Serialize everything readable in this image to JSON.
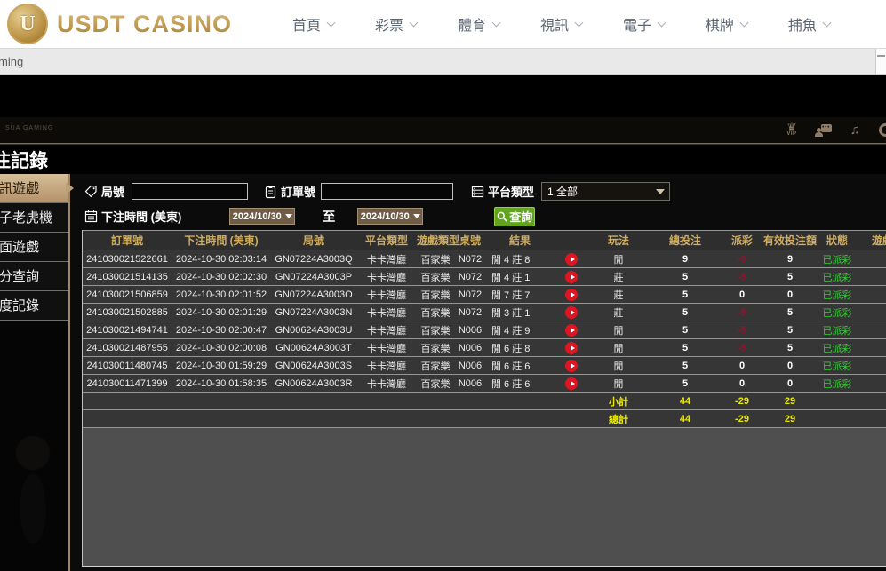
{
  "brand": {
    "name": "USDT CASINO",
    "logo_letter": "U"
  },
  "nav": {
    "items": [
      {
        "id": "home",
        "label": "首頁"
      },
      {
        "id": "lottery",
        "label": "彩票"
      },
      {
        "id": "sports",
        "label": "體育"
      },
      {
        "id": "live",
        "label": "視訊"
      },
      {
        "id": "slots",
        "label": "電子"
      },
      {
        "id": "cards",
        "label": "棋牌"
      },
      {
        "id": "fishing",
        "label": "捕魚"
      }
    ]
  },
  "breadcrumb_bar": {
    "text": "ming"
  },
  "toolbar": {
    "watermark": "SUA GAMING",
    "vip_label": "VIP"
  },
  "page": {
    "title": "注記錄"
  },
  "sidebar": {
    "items": [
      {
        "id": "live-games",
        "label": "訊遊戲",
        "active": true
      },
      {
        "id": "slot-machine",
        "label": "子老虎機",
        "active": false
      },
      {
        "id": "table-games",
        "label": "面遊戲",
        "active": false
      },
      {
        "id": "points-query",
        "label": "分查詢",
        "active": false
      },
      {
        "id": "quota-record",
        "label": "度記錄",
        "active": false
      }
    ]
  },
  "filters": {
    "round_label": "局號",
    "order_label": "訂單號",
    "platform_label": "平台類型",
    "platform_value": "1.全部",
    "time_label": "下注時間 (美東)",
    "date_from": "2024/10/30",
    "to_label": "至",
    "date_to": "2024/10/30",
    "search_label": "查詢"
  },
  "table": {
    "headers": [
      {
        "id": "order",
        "label": "訂單號"
      },
      {
        "id": "time",
        "label": "下注時間 (美東)"
      },
      {
        "id": "round",
        "label": "局號"
      },
      {
        "id": "platform",
        "label": "平台類型"
      },
      {
        "id": "game-type",
        "label": "遊戲類型"
      },
      {
        "id": "table-no",
        "label": "桌號"
      },
      {
        "id": "result",
        "label": "結果"
      },
      {
        "id": "video",
        "label": ""
      },
      {
        "id": "play",
        "label": "玩法"
      },
      {
        "id": "total-bet",
        "label": "總投注"
      },
      {
        "id": "payout",
        "label": "派彩"
      },
      {
        "id": "valid-bet",
        "label": "有效投注額"
      },
      {
        "id": "status",
        "label": "狀態"
      },
      {
        "id": "game",
        "label": "遊戲"
      }
    ],
    "rows": [
      {
        "order": "241030021522661",
        "time": "2024-10-30 02:03:14",
        "round": "GN07224A3003Q",
        "platform": "卡卡灣廳",
        "game": "百家樂",
        "table_no": "N072",
        "result": "閒 4 莊 8",
        "play": "閒",
        "total_bet": "9",
        "payout": "-9",
        "valid_bet": "9",
        "status": "已派彩"
      },
      {
        "order": "241030021514135",
        "time": "2024-10-30 02:02:30",
        "round": "GN07224A3003P",
        "platform": "卡卡灣廳",
        "game": "百家樂",
        "table_no": "N072",
        "result": "閒 4 莊 1",
        "play": "莊",
        "total_bet": "5",
        "payout": "-5",
        "valid_bet": "5",
        "status": "已派彩"
      },
      {
        "order": "241030021506859",
        "time": "2024-10-30 02:01:52",
        "round": "GN07224A3003O",
        "platform": "卡卡灣廳",
        "game": "百家樂",
        "table_no": "N072",
        "result": "閒 7 莊 7",
        "play": "莊",
        "total_bet": "5",
        "payout": "0",
        "valid_bet": "0",
        "status": "已派彩"
      },
      {
        "order": "241030021502885",
        "time": "2024-10-30 02:01:29",
        "round": "GN07224A3003N",
        "platform": "卡卡灣廳",
        "game": "百家樂",
        "table_no": "N072",
        "result": "閒 3 莊 1",
        "play": "莊",
        "total_bet": "5",
        "payout": "-5",
        "valid_bet": "5",
        "status": "已派彩"
      },
      {
        "order": "241030021494741",
        "time": "2024-10-30 02:00:47",
        "round": "GN00624A3003U",
        "platform": "卡卡灣廳",
        "game": "百家樂",
        "table_no": "N006",
        "result": "閒 4 莊 9",
        "play": "閒",
        "total_bet": "5",
        "payout": "-5",
        "valid_bet": "5",
        "status": "已派彩"
      },
      {
        "order": "241030021487955",
        "time": "2024-10-30 02:00:08",
        "round": "GN00624A3003T",
        "platform": "卡卡灣廳",
        "game": "百家樂",
        "table_no": "N006",
        "result": "閒 6 莊 8",
        "play": "閒",
        "total_bet": "5",
        "payout": "-5",
        "valid_bet": "5",
        "status": "已派彩"
      },
      {
        "order": "241030011480745",
        "time": "2024-10-30 01:59:29",
        "round": "GN00624A3003S",
        "platform": "卡卡灣廳",
        "game": "百家樂",
        "table_no": "N006",
        "result": "閒 6 莊 6",
        "play": "閒",
        "total_bet": "5",
        "payout": "0",
        "valid_bet": "0",
        "status": "已派彩"
      },
      {
        "order": "241030011471399",
        "time": "2024-10-30 01:58:35",
        "round": "GN00624A3003R",
        "platform": "卡卡灣廳",
        "game": "百家樂",
        "table_no": "N006",
        "result": "閒 6 莊 6",
        "play": "閒",
        "total_bet": "5",
        "payout": "0",
        "valid_bet": "0",
        "status": "已派彩"
      }
    ],
    "subtotal": {
      "label": "小計",
      "total_bet": "44",
      "payout": "-29",
      "valid_bet": "29"
    },
    "grand_total": {
      "label": "總計",
      "total_bet": "44",
      "payout": "-29",
      "valid_bet": "29"
    }
  },
  "colors": {
    "accent_gold": "#c9a45c",
    "header_gold": "#d0ac60",
    "status_green": "#33cc33",
    "total_yellow": "#eaea00",
    "payout_red": "#8c1631",
    "query_green": "#61a51f",
    "play_red": "#dd1520"
  }
}
